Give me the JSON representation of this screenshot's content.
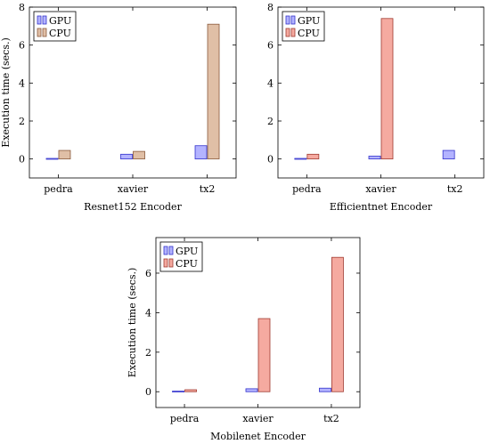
{
  "chart_data": [
    {
      "type": "bar",
      "title": "Resnet152 Encoder",
      "xlabel": "",
      "ylabel": "Execution time (secs.)",
      "ylim": [
        -1,
        8
      ],
      "yticks": [
        0,
        2,
        4,
        6,
        8
      ],
      "categories": [
        "pedra",
        "xavier",
        "tx2"
      ],
      "series": [
        {
          "name": "GPU",
          "values": [
            0.03,
            0.25,
            0.7
          ]
        },
        {
          "name": "CPU",
          "values": [
            0.45,
            0.4,
            7.1
          ]
        }
      ],
      "legend": "top-left",
      "grid": false
    },
    {
      "type": "bar",
      "title": "Efficientnet Encoder",
      "xlabel": "",
      "ylabel": "",
      "ylim": [
        -1,
        8
      ],
      "yticks": [
        0,
        2,
        4,
        6,
        8
      ],
      "categories": [
        "pedra",
        "xavier",
        "tx2"
      ],
      "series": [
        {
          "name": "GPU",
          "values": [
            0.03,
            0.15,
            0.45
          ]
        },
        {
          "name": "CPU",
          "values": [
            0.25,
            7.4,
            0
          ]
        }
      ],
      "legend": "top-left",
      "grid": false
    },
    {
      "type": "bar",
      "title": "Mobilenet Encoder",
      "xlabel": "",
      "ylabel": "Execution time (secs.)",
      "ylim": [
        -0.8,
        7.8
      ],
      "yticks": [
        0,
        2,
        4,
        6
      ],
      "categories": [
        "pedra",
        "xavier",
        "tx2"
      ],
      "series": [
        {
          "name": "GPU",
          "values": [
            0.03,
            0.15,
            0.18
          ]
        },
        {
          "name": "CPU",
          "values": [
            0.1,
            3.7,
            6.8
          ]
        }
      ],
      "legend": "top-left",
      "grid": false
    }
  ],
  "colors": {
    "GPU_fill": "#b3b3ff",
    "GPU_stroke": "#3333cc",
    "CPU_fill_panel1": "#e0bfa6",
    "CPU_stroke_panel1": "#8a5a3c",
    "CPU_fill": "#f5aaa0",
    "CPU_stroke": "#a03a30"
  }
}
